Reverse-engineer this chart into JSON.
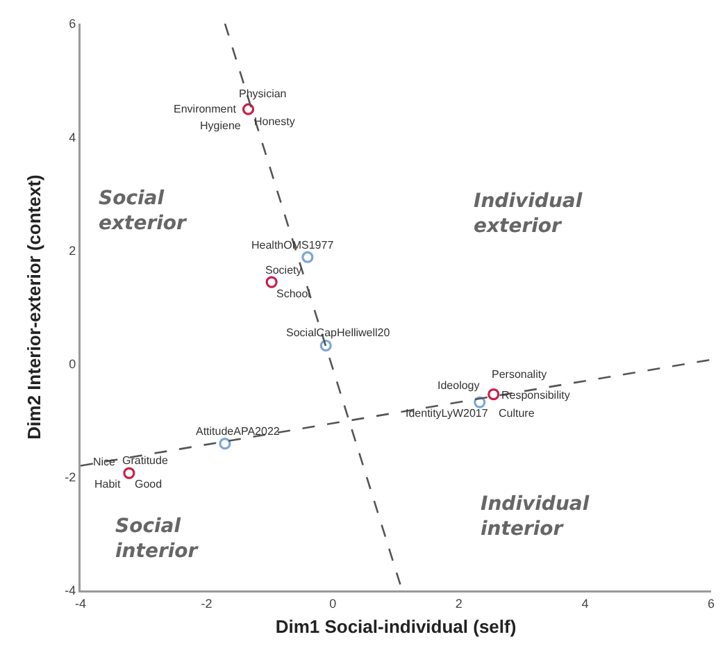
{
  "chart_data": {
    "type": "scatter",
    "xlabel": "Dim1 Social-individual (self)",
    "ylabel": "Dim2 Interior-exterior (context)",
    "xlim": [
      -4,
      6
    ],
    "xticks": [
      -4,
      -2,
      0,
      2,
      4,
      6
    ],
    "ylim": [
      -4,
      6
    ],
    "yticks": [
      -4,
      -2,
      0,
      2,
      4,
      6
    ],
    "grid": false,
    "marker": "circle",
    "series": [
      {
        "color": "#c8204a",
        "x": [
          -1.34,
          -0.97,
          2.55,
          -3.23
        ],
        "values": [
          4.49,
          1.44,
          -0.54,
          -1.93
        ]
      },
      {
        "color": "#7ba7d8",
        "x": [
          -0.4,
          -0.11,
          -1.71,
          2.33
        ],
        "values": [
          1.88,
          0.32,
          -1.41,
          -0.68
        ]
      },
      {
        "type": "line",
        "color": "#555555",
        "line_style": "dashed",
        "marker": "none",
        "x": [
          -1.71,
          1.1
        ],
        "values": [
          6,
          -4
        ]
      },
      {
        "type": "line",
        "color": "#555555",
        "line_style": "dashed",
        "marker": "none",
        "x": [
          -4,
          6
        ],
        "values": [
          -1.8,
          0.07
        ]
      }
    ],
    "annotations": [
      "Social\nexterior",
      "Individual\nexterior",
      "Social\ninterior",
      "Individual\ninterior",
      {
        "text": "Physician",
        "x": -1.34,
        "y": 4.49
      },
      {
        "text": "Environment",
        "x": -1.34,
        "y": 4.49
      },
      {
        "text": "Honesty",
        "x": -1.34,
        "y": 4.49
      },
      {
        "text": "Hygiene",
        "x": -1.34,
        "y": 4.49
      },
      {
        "text": "HealthOMS1977",
        "x": -0.4,
        "y": 1.88
      },
      {
        "text": "Society",
        "x": -0.97,
        "y": 1.44
      },
      {
        "text": "School",
        "x": -0.97,
        "y": 1.44
      },
      {
        "text": "SocialCapHelliwell20",
        "x": -0.11,
        "y": 0.32
      },
      {
        "text": "AttitudeAPA2022",
        "x": -1.71,
        "y": -1.41
      },
      {
        "text": "Nice",
        "x": -3.23,
        "y": -1.93
      },
      {
        "text": "Gratitude",
        "x": -3.23,
        "y": -1.93
      },
      {
        "text": "Habit",
        "x": -3.23,
        "y": -1.93
      },
      {
        "text": "Good",
        "x": -3.23,
        "y": -1.93
      },
      {
        "text": "Personality",
        "x": 2.55,
        "y": -0.54
      },
      {
        "text": "Ideology",
        "x": 2.55,
        "y": -0.54
      },
      {
        "text": "Responsibility",
        "x": 2.55,
        "y": -0.54
      },
      {
        "text": "IdentityLyW2017",
        "x": 2.33,
        "y": -0.68
      },
      {
        "text": "Culture",
        "x": 2.55,
        "y": -0.54
      }
    ]
  }
}
